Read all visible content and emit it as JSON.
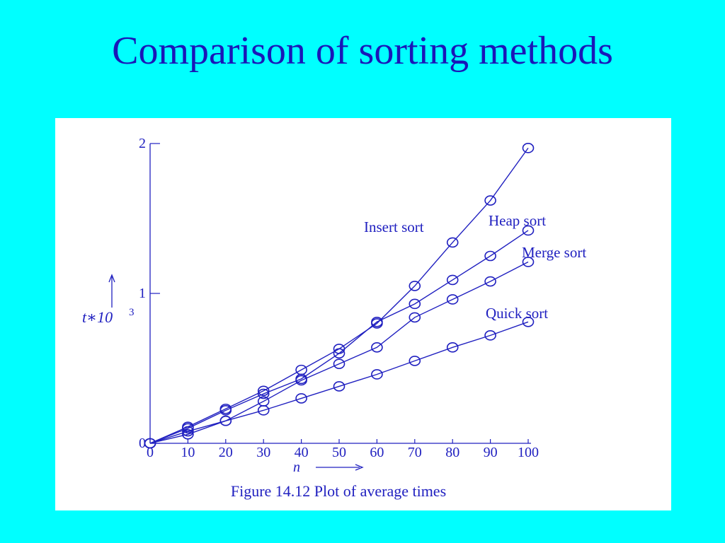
{
  "slide": {
    "title": "Comparison of sorting methods"
  },
  "colors": {
    "background": "#00ffff",
    "title": "#1a17b8",
    "plot": "#2020c0",
    "panel": "#ffffff"
  },
  "chart_data": {
    "type": "line",
    "caption": "Figure 14.12 Plot of average times",
    "xlabel": "n",
    "ylabel": "t∗10",
    "ylabel_superscript": "3",
    "xlim": [
      0,
      100
    ],
    "ylim": [
      0,
      2
    ],
    "x_ticks": [
      "0",
      "10",
      "20",
      "30",
      "40",
      "50",
      "60",
      "70",
      "80",
      "90",
      "100"
    ],
    "y_ticks": [
      "0",
      "1",
      "2"
    ],
    "grid": false,
    "marker": "circle",
    "x": [
      0,
      10,
      20,
      30,
      40,
      50,
      60,
      70,
      80,
      90,
      100
    ],
    "series": [
      {
        "name": "Insert sort",
        "values": [
          0,
          0.11,
          0.23,
          0.35,
          0.49,
          0.63,
          0.8,
          1.05,
          1.34,
          1.62,
          1.97
        ]
      },
      {
        "name": "Heap sort",
        "values": [
          0,
          0.1,
          0.22,
          0.33,
          0.43,
          0.6,
          0.81,
          0.93,
          1.09,
          1.25,
          1.42
        ]
      },
      {
        "name": "Merge sort",
        "values": [
          0,
          0.08,
          0.15,
          0.28,
          0.42,
          0.53,
          0.64,
          0.84,
          0.96,
          1.08,
          1.21
        ]
      },
      {
        "name": "Quick sort",
        "values": [
          0,
          0.06,
          0.15,
          0.22,
          0.3,
          0.38,
          0.46,
          0.55,
          0.64,
          0.72,
          0.81
        ]
      }
    ]
  }
}
